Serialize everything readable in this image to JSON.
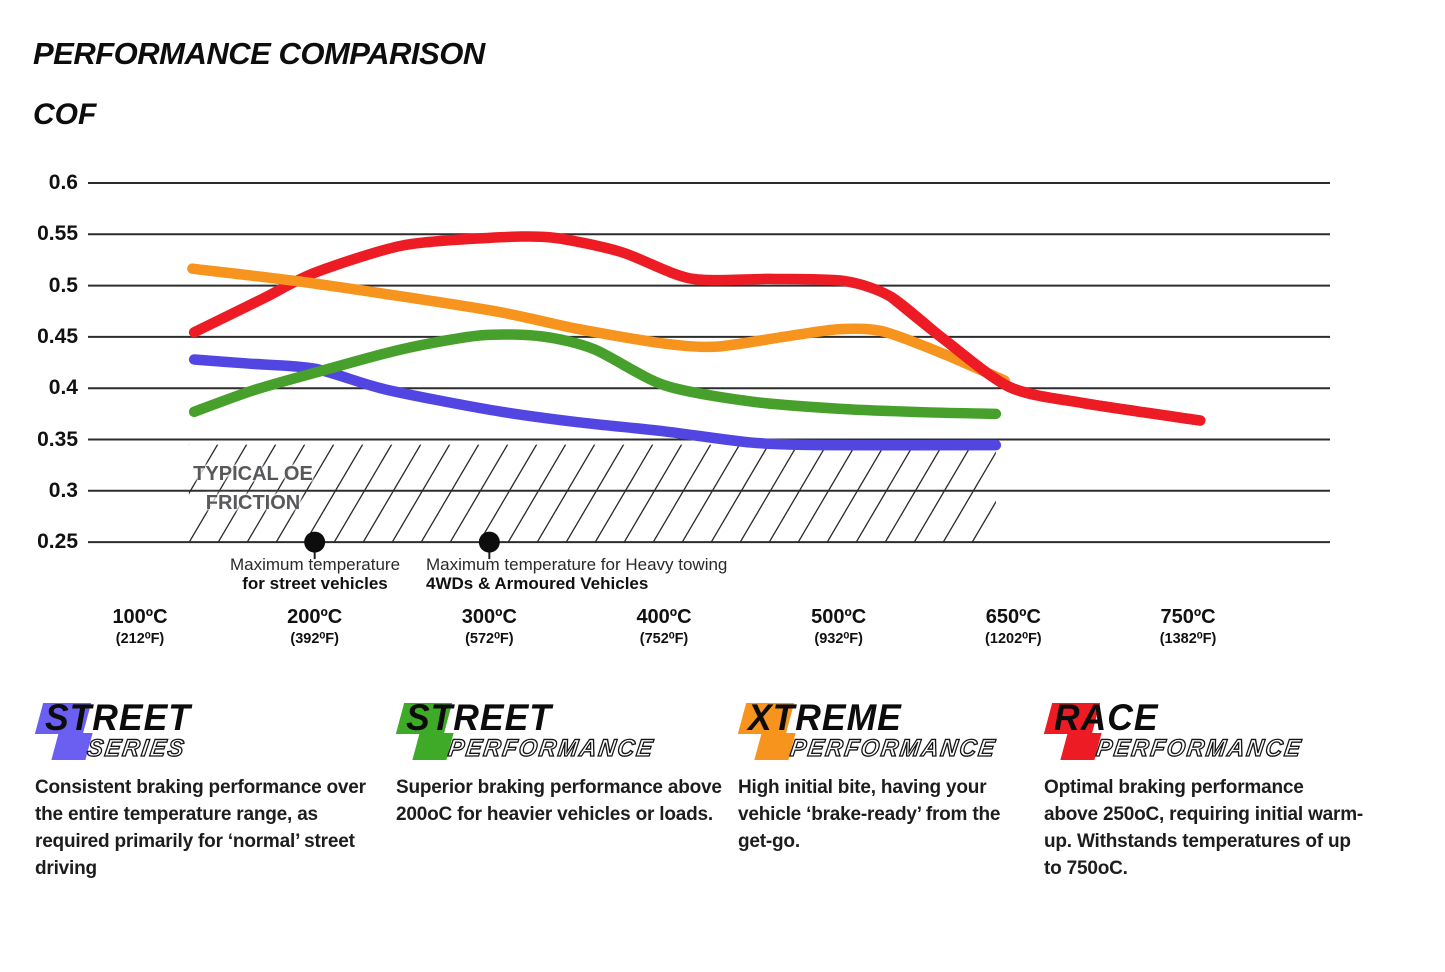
{
  "page": {
    "title": "PERFORMANCE COMPARISON",
    "y_axis_label": "COF"
  },
  "chart_data": {
    "type": "line",
    "title": "PERFORMANCE COMPARISON",
    "ylabel": "COF",
    "xlabel": "",
    "grid": "horizontal-only",
    "legend_position": "bottom",
    "ylim": [
      0.25,
      0.6
    ],
    "y_ticks": [
      "0.6",
      "0.55",
      "0.5",
      "0.45",
      "0.4",
      "0.35",
      "0.3",
      "0.25"
    ],
    "x_categories": [
      {
        "label": "100ºC",
        "sub": "(212⁰F)"
      },
      {
        "label": "200ºC",
        "sub": "(392⁰F)"
      },
      {
        "label": "300ºC",
        "sub": "(572⁰F)"
      },
      {
        "label": "400ºC",
        "sub": "(752⁰F)"
      },
      {
        "label": "500ºC",
        "sub": "(932⁰F)"
      },
      {
        "label": "650ºC",
        "sub": "(1202⁰F)"
      },
      {
        "label": "750ºC",
        "sub": "(1382⁰F)"
      }
    ],
    "series": [
      {
        "name": "Street Series",
        "color": "#5246e2",
        "points": [
          [
            0.31,
            0.428
          ],
          [
            0.62,
            0.424
          ],
          [
            1.0,
            0.419
          ],
          [
            1.4,
            0.399
          ],
          [
            2.0,
            0.379
          ],
          [
            2.5,
            0.367
          ],
          [
            3.0,
            0.358
          ],
          [
            3.5,
            0.347
          ],
          [
            3.9,
            0.3445
          ],
          [
            4.9,
            0.3445
          ]
        ]
      },
      {
        "name": "Street Performance",
        "color": "#46a02b",
        "points": [
          [
            0.31,
            0.377
          ],
          [
            0.65,
            0.398
          ],
          [
            1.0,
            0.415
          ],
          [
            1.5,
            0.438
          ],
          [
            1.95,
            0.4515
          ],
          [
            2.3,
            0.4505
          ],
          [
            2.6,
            0.438
          ],
          [
            3.0,
            0.403
          ],
          [
            3.5,
            0.387
          ],
          [
            4.0,
            0.38
          ],
          [
            4.5,
            0.3765
          ],
          [
            4.9,
            0.375
          ]
        ]
      },
      {
        "name": "Xtreme Performance",
        "color": "#f7941e",
        "points": [
          [
            0.3,
            0.5165
          ],
          [
            1.0,
            0.502
          ],
          [
            2.0,
            0.476
          ],
          [
            2.5,
            0.458
          ],
          [
            3.0,
            0.4435
          ],
          [
            3.3,
            0.4405
          ],
          [
            3.7,
            0.4505
          ],
          [
            4.0,
            0.4575
          ],
          [
            4.25,
            0.4555
          ],
          [
            4.6,
            0.4335
          ],
          [
            4.95,
            0.4075
          ]
        ]
      },
      {
        "name": "Race Performance",
        "color": "#ed1c24",
        "points": [
          [
            0.31,
            0.4545
          ],
          [
            0.7,
            0.487
          ],
          [
            1.0,
            0.5125
          ],
          [
            1.5,
            0.539
          ],
          [
            2.0,
            0.5465
          ],
          [
            2.35,
            0.547
          ],
          [
            2.75,
            0.533
          ],
          [
            3.15,
            0.507
          ],
          [
            3.6,
            0.5065
          ],
          [
            4.03,
            0.5045
          ],
          [
            4.3,
            0.489
          ],
          [
            4.6,
            0.448
          ],
          [
            4.98,
            0.401
          ],
          [
            5.4,
            0.3855
          ],
          [
            6.07,
            0.3685
          ]
        ]
      }
    ],
    "oe_band": {
      "label_line1": "TYPICAL OE",
      "label_line2": "FRICTION",
      "cof_min": 0.25,
      "cof_max": 0.345,
      "x_start_index": 0.28,
      "x_end_index": 4.9
    },
    "annotations": [
      {
        "x_index": 1,
        "cof": 0.25,
        "line1": "Maximum temperature",
        "line2": "for street vehicles"
      },
      {
        "x_index": 2,
        "cof": 0.25,
        "line1": "Maximum temperature for Heavy towing",
        "line2": "4WDs & Armoured Vehicles"
      }
    ]
  },
  "legend": {
    "items": [
      {
        "word1": "STREET",
        "word2": "SERIES",
        "color": "#6a5ff0",
        "description": "Consistent braking performance over\nthe entire temperature range, as\nrequired primarily for ‘normal’ street\ndriving"
      },
      {
        "word1": "STREET",
        "word2": "PERFORMANCE",
        "color": "#3faa28",
        "description": "Superior braking performance above\n200oC for heavier vehicles or loads."
      },
      {
        "word1": "XTREME",
        "word2": "PERFORMANCE",
        "color": "#f7941e",
        "description": "High initial bite, having your\nvehicle ‘brake-ready’ from the\nget-go."
      },
      {
        "word1": "RACE",
        "word2": "PERFORMANCE",
        "color": "#ed1c24",
        "description": "Optimal braking performance\nabove 250oC, requiring initial warm-\nup. Withstands temperatures of up\nto 750oC."
      }
    ]
  }
}
